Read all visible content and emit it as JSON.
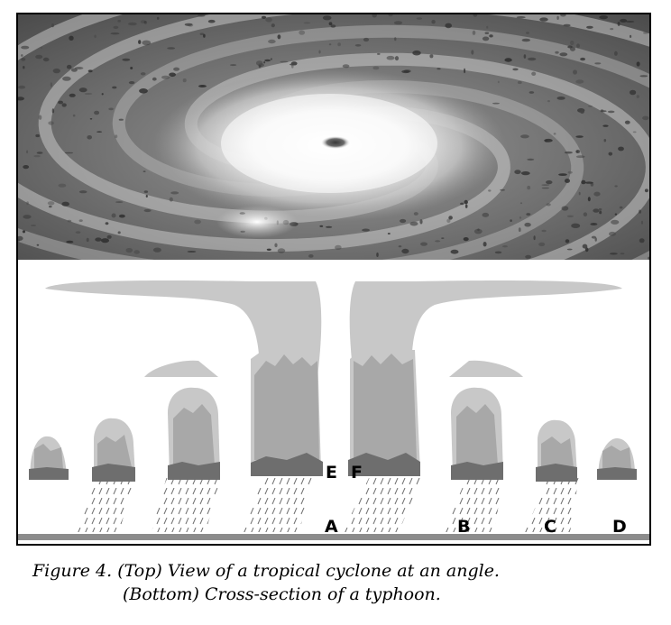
{
  "figure": {
    "top_image": "satellite-photo-tropical-cyclone",
    "labels": {
      "A": "A",
      "B": "B",
      "C": "C",
      "D": "D",
      "E": "E",
      "F": "F"
    }
  },
  "caption": {
    "line1": "Figure 4.  (Top) View of a tropical cyclone at an angle.",
    "line2": "(Bottom) Cross-section of a typhoon."
  },
  "colors": {
    "cloud_light": "#c8c8c8",
    "cloud_mid": "#a8a8a8",
    "cloud_dark": "#6e6e6e",
    "rain": "#7a7a7a",
    "ground": "#8c8c8c"
  }
}
